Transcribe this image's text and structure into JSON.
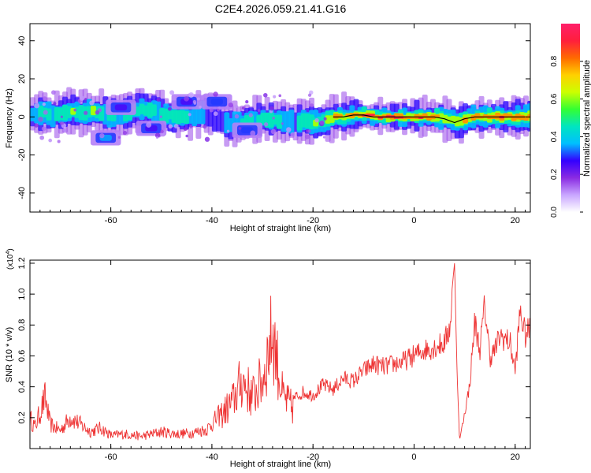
{
  "title": "C2E4.2026.059.21.41.G16",
  "chart_data": [
    {
      "type": "heatmap",
      "xlabel": "Height of straight line (km)",
      "ylabel": "Frequency (Hz)",
      "xlim": [
        -76,
        23
      ],
      "ylim": [
        -50,
        49
      ],
      "xticks": [
        "-60",
        "-40",
        "-20",
        "0",
        "20"
      ],
      "xtick_values": [
        -60,
        -40,
        -20,
        0,
        20
      ],
      "yticks": [
        "40",
        "20",
        "0",
        "-20",
        "-40"
      ],
      "ytick_values": [
        40,
        20,
        0,
        -20,
        -40
      ],
      "colorbar": {
        "label": "Normalized spectral amplitude",
        "ticks": [
          "0.0",
          "0.2",
          "0.4",
          "0.6",
          "0.8"
        ],
        "tick_values": [
          0,
          0.2,
          0.4,
          0.6,
          0.8
        ],
        "range": [
          0,
          1
        ],
        "colors": [
          "#ffffff",
          "#c9a6ff",
          "#8a2be2",
          "#3300ff",
          "#00bfff",
          "#00e5c0",
          "#33ff33",
          "#ccff00",
          "#ffd000",
          "#ff6a00",
          "#ff1f3c",
          "#ff1f6a"
        ]
      },
      "ridge": [
        {
          "x": -76,
          "f": 1,
          "a": 0.35
        },
        {
          "x": -74,
          "f": 2,
          "a": 0.45
        },
        {
          "x": -72,
          "f": 1,
          "a": 0.4
        },
        {
          "x": -70,
          "f": 2,
          "a": 0.5
        },
        {
          "x": -68,
          "f": 3,
          "a": 0.55
        },
        {
          "x": -66,
          "f": 2,
          "a": 0.45
        },
        {
          "x": -64,
          "f": 3,
          "a": 0.5
        },
        {
          "x": -62,
          "f": 2,
          "a": 0.45
        },
        {
          "x": -60,
          "f": 1,
          "a": 0.4
        },
        {
          "x": -58,
          "f": 1,
          "a": 0.35
        },
        {
          "x": -56,
          "f": 3,
          "a": 0.5
        },
        {
          "x": -54,
          "f": 4,
          "a": 0.45
        },
        {
          "x": -52,
          "f": 3,
          "a": 0.45
        },
        {
          "x": -50,
          "f": 1,
          "a": 0.4
        },
        {
          "x": -48,
          "f": 0,
          "a": 0.45
        },
        {
          "x": -46,
          "f": 0,
          "a": 0.4
        },
        {
          "x": -44,
          "f": 1,
          "a": 0.35
        },
        {
          "x": -42,
          "f": 3,
          "a": 0.3
        },
        {
          "x": -40,
          "f": 0,
          "a": 0.3
        },
        {
          "x": -38,
          "f": -3,
          "a": 0.35
        },
        {
          "x": -36,
          "f": -4,
          "a": 0.4
        },
        {
          "x": -34,
          "f": -3,
          "a": 0.45
        },
        {
          "x": -32,
          "f": -2,
          "a": 0.45
        },
        {
          "x": -30,
          "f": -1,
          "a": 0.45
        },
        {
          "x": -28,
          "f": -2,
          "a": 0.4
        },
        {
          "x": -26,
          "f": -2,
          "a": 0.35
        },
        {
          "x": -24,
          "f": -3,
          "a": 0.35
        },
        {
          "x": -22,
          "f": -2,
          "a": 0.45
        },
        {
          "x": -20,
          "f": -3,
          "a": 0.5
        },
        {
          "x": -18,
          "f": -2,
          "a": 0.6
        },
        {
          "x": -16,
          "f": 0,
          "a": 0.72
        },
        {
          "x": -14,
          "f": 0,
          "a": 0.8
        },
        {
          "x": -12,
          "f": 1,
          "a": 0.85
        },
        {
          "x": -10,
          "f": 1,
          "a": 0.9
        },
        {
          "x": -8,
          "f": 0,
          "a": 0.9
        },
        {
          "x": -6,
          "f": 0,
          "a": 0.95
        },
        {
          "x": -4,
          "f": 0,
          "a": 0.95
        },
        {
          "x": -2,
          "f": 0,
          "a": 0.95
        },
        {
          "x": 0,
          "f": 0,
          "a": 0.9
        },
        {
          "x": 2,
          "f": 0,
          "a": 0.9
        },
        {
          "x": 4,
          "f": 0,
          "a": 0.85
        },
        {
          "x": 6,
          "f": -1,
          "a": 0.7
        },
        {
          "x": 8,
          "f": -3,
          "a": 0.6
        },
        {
          "x": 10,
          "f": -1,
          "a": 0.75
        },
        {
          "x": 12,
          "f": 0,
          "a": 0.85
        },
        {
          "x": 14,
          "f": 0,
          "a": 0.85
        },
        {
          "x": 16,
          "f": 0,
          "a": 0.8
        },
        {
          "x": 18,
          "f": 0,
          "a": 0.8
        },
        {
          "x": 20,
          "f": 0,
          "a": 0.75
        },
        {
          "x": 22,
          "f": 0,
          "a": 0.7
        }
      ],
      "patches": [
        {
          "x": -61,
          "f": -11,
          "a": 0.35
        },
        {
          "x": -45,
          "f": 8,
          "a": 0.25
        },
        {
          "x": -58,
          "f": 5,
          "a": 0.25
        },
        {
          "x": -39,
          "f": 8,
          "a": 0.3
        },
        {
          "x": -33,
          "f": -7,
          "a": 0.3
        },
        {
          "x": -52,
          "f": -6,
          "a": 0.25
        }
      ]
    },
    {
      "type": "line",
      "xlabel": "Height of straight line (km)",
      "ylabel": "SNR (10 * v/v)",
      "multiplier": "(x10 4)",
      "multiplier_base": "(x10",
      "multiplier_exp": "4",
      "multiplier_close": ")",
      "xlim": [
        -76,
        23
      ],
      "ylim": [
        0,
        1.22
      ],
      "xticks": [
        "-60",
        "-40",
        "-20",
        "0",
        "20"
      ],
      "xtick_values": [
        -60,
        -40,
        -20,
        0,
        20
      ],
      "yticks": [
        "0.2",
        "0.4",
        "0.6",
        "0.8",
        "1.0",
        "1.2"
      ],
      "ytick_values": [
        0.2,
        0.4,
        0.6,
        0.8,
        1.0,
        1.2
      ],
      "line_color": "#ee3333",
      "series": [
        {
          "points": [
            {
              "x": -76,
              "y": 0.25
            },
            {
              "x": -75,
              "y": 0.18
            },
            {
              "x": -74,
              "y": 0.3
            },
            {
              "x": -73,
              "y": 0.42
            },
            {
              "x": -72,
              "y": 0.2
            },
            {
              "x": -70,
              "y": 0.15
            },
            {
              "x": -68,
              "y": 0.26
            },
            {
              "x": -66,
              "y": 0.2
            },
            {
              "x": -64,
              "y": 0.14
            },
            {
              "x": -62,
              "y": 0.17
            },
            {
              "x": -60,
              "y": 0.11
            },
            {
              "x": -57,
              "y": 0.12
            },
            {
              "x": -54,
              "y": 0.1
            },
            {
              "x": -50,
              "y": 0.14
            },
            {
              "x": -47,
              "y": 0.12
            },
            {
              "x": -44,
              "y": 0.13
            },
            {
              "x": -41,
              "y": 0.16
            },
            {
              "x": -38,
              "y": 0.3
            },
            {
              "x": -36,
              "y": 0.4
            },
            {
              "x": -34,
              "y": 0.6
            },
            {
              "x": -32,
              "y": 0.45
            },
            {
              "x": -30,
              "y": 0.6
            },
            {
              "x": -28,
              "y": 1.03
            },
            {
              "x": -26,
              "y": 0.45
            },
            {
              "x": -24,
              "y": 0.35
            },
            {
              "x": -22,
              "y": 0.4
            },
            {
              "x": -20,
              "y": 0.38
            },
            {
              "x": -18,
              "y": 0.45
            },
            {
              "x": -16,
              "y": 0.42
            },
            {
              "x": -14,
              "y": 0.5
            },
            {
              "x": -12,
              "y": 0.48
            },
            {
              "x": -10,
              "y": 0.55
            },
            {
              "x": -8,
              "y": 0.6
            },
            {
              "x": -6,
              "y": 0.58
            },
            {
              "x": -4,
              "y": 0.6
            },
            {
              "x": -2,
              "y": 0.62
            },
            {
              "x": 0,
              "y": 0.66
            },
            {
              "x": 2,
              "y": 0.7
            },
            {
              "x": 4,
              "y": 0.72
            },
            {
              "x": 6,
              "y": 0.75
            },
            {
              "x": 7,
              "y": 0.85
            },
            {
              "x": 8,
              "y": 1.2
            },
            {
              "x": 8.5,
              "y": 0.5
            },
            {
              "x": 9,
              "y": 0.05
            },
            {
              "x": 10,
              "y": 0.25
            },
            {
              "x": 11,
              "y": 0.45
            },
            {
              "x": 12,
              "y": 0.9
            },
            {
              "x": 13,
              "y": 0.7
            },
            {
              "x": 14,
              "y": 1.02
            },
            {
              "x": 15,
              "y": 0.65
            },
            {
              "x": 16,
              "y": 0.7
            },
            {
              "x": 17,
              "y": 0.8
            },
            {
              "x": 18,
              "y": 0.78
            },
            {
              "x": 19,
              "y": 0.75
            },
            {
              "x": 20,
              "y": 0.55
            },
            {
              "x": 21,
              "y": 0.98
            },
            {
              "x": 22,
              "y": 0.8
            },
            {
              "x": 23,
              "y": 0.85
            }
          ]
        }
      ]
    }
  ]
}
